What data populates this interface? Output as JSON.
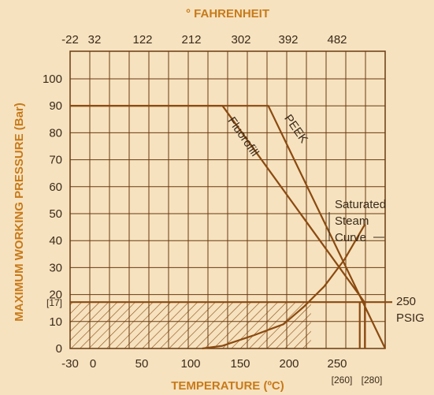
{
  "chart_data": {
    "type": "line",
    "title": "",
    "xlabel": "TEMPERATURE (ºC)",
    "ylabel": "MAXIMUM WORKING PRESSURE (Bar)",
    "x2label": "° FAHRENHEIT",
    "xlim": [
      -30,
      280
    ],
    "ylim": [
      0,
      100
    ],
    "grid": true,
    "x_ticks": [
      -30,
      0,
      50,
      100,
      150,
      200,
      250
    ],
    "x_extra_ticks": [
      "[260]",
      "[280]"
    ],
    "x2_ticks": [
      "-22",
      "32",
      "122",
      "212",
      "302",
      "392",
      "482"
    ],
    "x2_tick_positions_c": [
      -30,
      0,
      50,
      100,
      150,
      200,
      250
    ],
    "y_ticks": [
      "0",
      "10",
      "20",
      "30",
      "40",
      "50",
      "60",
      "70",
      "80",
      "90",
      "100"
    ],
    "y_extra_label": "[17]",
    "y_extra_value": 17,
    "series": [
      {
        "name": "Fluorofill",
        "x": [
          -30,
          120,
          260,
          260
        ],
        "y": [
          90,
          90,
          17,
          0
        ]
      },
      {
        "name": "PEEK",
        "x": [
          -30,
          165,
          280
        ],
        "y": [
          90,
          90,
          0
        ]
      },
      {
        "name": "Saturated Steam Curve",
        "x": [
          100,
          120,
          150,
          180,
          200,
          220,
          240,
          260
        ],
        "y": [
          0,
          1,
          4.8,
          9,
          15.5,
          23,
          33,
          46
        ]
      }
    ],
    "reference_lines": [
      {
        "name": "250 PSIG",
        "y": 17.2,
        "label_lines": [
          "250",
          "PSIG"
        ]
      }
    ],
    "hatched_region": {
      "x": [
        -30,
        207
      ],
      "y": [
        0,
        17
      ]
    },
    "annotations": {
      "fluorofill": "Fluorofill",
      "peek": "PEEK",
      "steam_lines": [
        "Saturated",
        "Steam",
        "Curve"
      ]
    },
    "colors": {
      "background": "#f6e2bf",
      "series": "#8b4a10",
      "grid": "#6a3a10",
      "axis_title": "#c77a1a",
      "text": "#3a2a1a"
    }
  }
}
